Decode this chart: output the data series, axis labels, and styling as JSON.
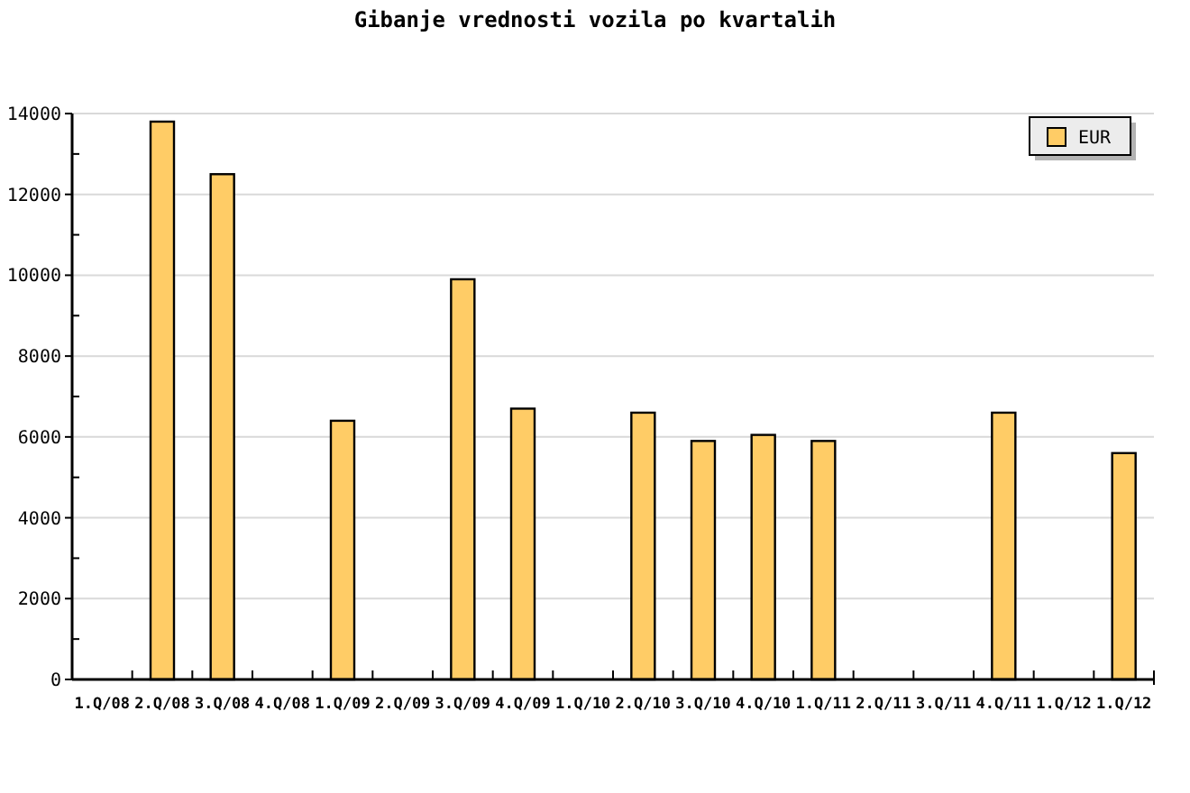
{
  "chart_data": {
    "type": "bar",
    "title": "Gibanje vrednosti vozila po kvartalih",
    "categories": [
      "1.Q/08",
      "2.Q/08",
      "3.Q/08",
      "4.Q/08",
      "1.Q/09",
      "2.Q/09",
      "3.Q/09",
      "4.Q/09",
      "1.Q/10",
      "2.Q/10",
      "3.Q/10",
      "4.Q/10",
      "1.Q/11",
      "2.Q/11",
      "3.Q/11",
      "4.Q/11",
      "1.Q/12",
      "1.Q/12"
    ],
    "series": [
      {
        "name": "EUR",
        "color": "#ffcc66",
        "values": [
          null,
          13800,
          12500,
          null,
          6400,
          null,
          9900,
          6700,
          null,
          6600,
          5900,
          6050,
          5900,
          null,
          null,
          6600,
          null,
          5600
        ]
      }
    ],
    "ylim": [
      0,
      14000
    ],
    "yticks": [
      0,
      {
        "value": 1000,
        "label": null
      },
      2000,
      {
        "value": 3000,
        "label": null
      },
      4000,
      {
        "value": 5000,
        "label": null
      },
      6000,
      {
        "value": 7000,
        "label": null
      },
      8000,
      {
        "value": 9000,
        "label": null
      },
      10000,
      {
        "value": 11000,
        "label": null
      },
      12000,
      {
        "value": 13000,
        "label": null
      },
      14000
    ],
    "grid": "y",
    "legend": "top right"
  }
}
